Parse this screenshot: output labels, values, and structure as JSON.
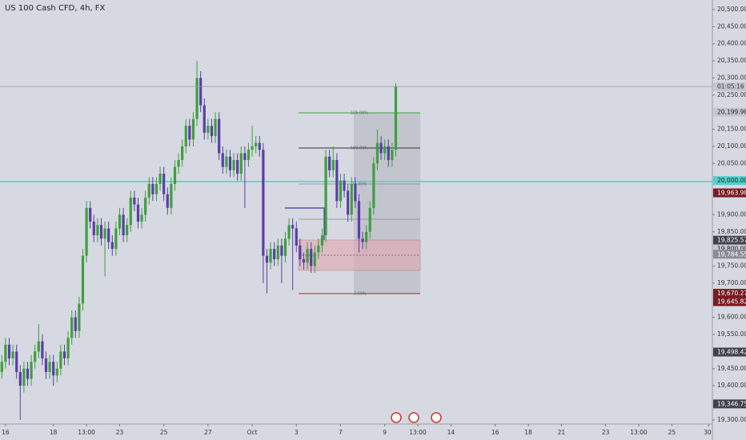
{
  "chart_data": {
    "type": "candlestick",
    "title": "US 100 Cash CFD, 4h, FX",
    "up_color": "#3f9e3f",
    "down_color": "#5a3ea6",
    "open": [
      19440,
      19470,
      19520,
      19480,
      19500,
      19440,
      19400,
      19450,
      19420,
      19470,
      19500,
      19530,
      19480,
      19440,
      19470,
      19430,
      19450,
      19500,
      19480,
      19540,
      19600,
      19560,
      19640,
      19780,
      19920,
      19880,
      19840,
      19870,
      19830,
      19860,
      19820,
      19800,
      19860,
      19900,
      19840,
      19870,
      19950,
      19930,
      19880,
      19900,
      19950,
      19990,
      19960,
      19990,
      20020,
      19960,
      19920,
      19990,
      20040,
      20060,
      20100,
      20160,
      20120,
      20180,
      20300,
      20220,
      20140,
      20160,
      20130,
      20180,
      20080,
      20040,
      20070,
      20030,
      20060,
      20020,
      20080,
      20060,
      20090,
      20100,
      20110,
      20090,
      19780,
      19760,
      19800,
      19770,
      19810,
      19780,
      19830,
      19870,
      19860,
      19810,
      19770,
      19760,
      19800,
      19750,
      19790,
      19810,
      19840,
      20070,
      20030,
      20060,
      19940,
      20000,
      19970,
      19900,
      19990,
      19940,
      19830,
      19820,
      19850,
      19920,
      20050,
      20110,
      20080,
      20100,
      20060,
      20090
    ],
    "high": [
      19490,
      19540,
      19540,
      19520,
      19520,
      19460,
      19470,
      19470,
      19490,
      19520,
      19580,
      19550,
      19500,
      19490,
      19490,
      19470,
      19520,
      19520,
      19560,
      19620,
      19620,
      19660,
      19800,
      19940,
      19940,
      19900,
      19890,
      19890,
      19880,
      19880,
      19840,
      19880,
      19920,
      19920,
      19890,
      19970,
      19970,
      19950,
      19920,
      19970,
      20010,
      20010,
      20010,
      20040,
      20040,
      19980,
      20010,
      20060,
      20080,
      20120,
      20180,
      20180,
      20200,
      20350,
      20320,
      20240,
      20180,
      20180,
      20200,
      20200,
      20100,
      20090,
      20090,
      20080,
      20080,
      20100,
      20100,
      20110,
      20160,
      20130,
      20130,
      20110,
      19800,
      19820,
      19820,
      19830,
      19830,
      19850,
      19890,
      19890,
      19880,
      19830,
      19790,
      19820,
      19820,
      19810,
      19830,
      19860,
      20090,
      20090,
      20100,
      20080,
      20020,
      20020,
      19990,
      20010,
      20010,
      19960,
      19850,
      19870,
      19940,
      20070,
      20150,
      20130,
      20120,
      20120,
      20110,
      20285
    ],
    "low": [
      19420,
      19450,
      19460,
      19460,
      19420,
      19300,
      19380,
      19400,
      19400,
      19450,
      19480,
      19460,
      19420,
      19420,
      19400,
      19410,
      19430,
      19460,
      19460,
      19520,
      19540,
      19540,
      19620,
      19760,
      19860,
      19820,
      19820,
      19810,
      19720,
      19800,
      19780,
      19780,
      19840,
      19820,
      19820,
      19850,
      19910,
      19860,
      19860,
      19880,
      19930,
      19940,
      19940,
      19970,
      19940,
      19900,
      19900,
      19970,
      20020,
      20040,
      20080,
      20100,
      20100,
      20160,
      20200,
      20120,
      20120,
      20110,
      20110,
      20060,
      20020,
      20020,
      20010,
      20010,
      20000,
      20000,
      19920,
      20040,
      20070,
      20080,
      20070,
      19700,
      19670,
      19740,
      19750,
      19750,
      19700,
      19760,
      19810,
      19680,
      19790,
      19750,
      19740,
      19740,
      19730,
      19730,
      19770,
      19790,
      19820,
      20010,
      20010,
      19920,
      19920,
      19950,
      19880,
      19880,
      19920,
      19790,
      19800,
      19800,
      19830,
      19900,
      20030,
      20060,
      20060,
      20040,
      20040,
      20070
    ],
    "close": [
      19470,
      19520,
      19480,
      19500,
      19440,
      19400,
      19450,
      19420,
      19470,
      19500,
      19530,
      19480,
      19440,
      19470,
      19430,
      19450,
      19500,
      19480,
      19540,
      19600,
      19560,
      19640,
      19780,
      19920,
      19880,
      19840,
      19870,
      19830,
      19860,
      19820,
      19800,
      19860,
      19900,
      19840,
      19870,
      19950,
      19930,
      19880,
      19900,
      19950,
      19990,
      19960,
      19990,
      20020,
      19960,
      19920,
      19990,
      20040,
      20060,
      20100,
      20160,
      20120,
      20180,
      20300,
      20220,
      20140,
      20160,
      20130,
      20180,
      20080,
      20040,
      20070,
      20030,
      20060,
      20020,
      20080,
      20060,
      20090,
      20100,
      20110,
      20090,
      19780,
      19760,
      19800,
      19770,
      19810,
      19780,
      19830,
      19870,
      19860,
      19810,
      19770,
      19760,
      19800,
      19750,
      19790,
      19810,
      19840,
      20070,
      20030,
      20060,
      19940,
      20000,
      19970,
      19900,
      19990,
      19940,
      19830,
      19820,
      19850,
      19920,
      20050,
      20110,
      20080,
      20100,
      20060,
      20090,
      20275
    ],
    "xlim": [
      -0.5,
      193
    ],
    "xticks": [
      {
        "value": 1,
        "label": "16"
      },
      {
        "value": 14,
        "label": "18"
      },
      {
        "value": 23,
        "label": "13:00"
      },
      {
        "value": 32,
        "label": "23"
      },
      {
        "value": 44,
        "label": "25"
      },
      {
        "value": 56,
        "label": "27"
      },
      {
        "value": 68,
        "label": "Oct"
      },
      {
        "value": 80,
        "label": "3"
      },
      {
        "value": 92,
        "label": "7"
      },
      {
        "value": 104,
        "label": "9"
      },
      {
        "value": 113,
        "label": "13:00"
      },
      {
        "value": 122,
        "label": "14"
      },
      {
        "value": 134,
        "label": "16"
      },
      {
        "value": 143,
        "label": "18"
      },
      {
        "value": 152,
        "label": "21"
      },
      {
        "value": 164,
        "label": "23"
      },
      {
        "value": 173,
        "label": "13:00"
      },
      {
        "value": 182,
        "label": "25"
      },
      {
        "value": 192,
        "label": "30"
      }
    ],
    "ylim": [
      19288,
      20528
    ],
    "yticks": [
      {
        "value": 20500,
        "label": "20,500.00"
      },
      {
        "value": 20450,
        "label": "20,450.00"
      },
      {
        "value": 20400,
        "label": "20,400.00"
      },
      {
        "value": 20350,
        "label": "20,350.00"
      },
      {
        "value": 20300,
        "label": "20,300.00"
      },
      {
        "value": 20250,
        "label": "20,250.00"
      },
      {
        "value": 20150,
        "label": "20,150.00"
      },
      {
        "value": 20100,
        "label": "20,100.00"
      },
      {
        "value": 20050,
        "label": "20,050.00"
      },
      {
        "value": 19900,
        "label": "19,900.00"
      },
      {
        "value": 19850,
        "label": "19,850.00"
      },
      {
        "value": 19750,
        "label": "19,750.00"
      },
      {
        "value": 19700,
        "label": "19,700.00"
      },
      {
        "value": 19600,
        "label": "19,600.00"
      },
      {
        "value": 19550,
        "label": "19,550.00"
      },
      {
        "value": 19450,
        "label": "19,450.00"
      },
      {
        "value": 19400,
        "label": "19,400.00"
      },
      {
        "value": 19300,
        "label": "19,300.00"
      }
    ],
    "price_labels": [
      {
        "value": 20199.98,
        "label": "20,199.98",
        "color": "#c4c7cf"
      },
      {
        "value": 20000,
        "label": "20,000.00",
        "color": "#4fd1cc"
      },
      {
        "value": 19963.98,
        "label": "19,963.98",
        "color": "#7a1a22"
      },
      {
        "value": 19825.57,
        "label": "19,825.57",
        "color": "#40434d"
      },
      {
        "value": 19800,
        "label": "19,800.00",
        "color": "#c4c7cf"
      },
      {
        "value": 19784.55,
        "label": "19,784.55",
        "color": "#8a8d96"
      },
      {
        "value": 19670.27,
        "label": "19,670.27",
        "color": "#7a1a22"
      },
      {
        "value": 19645.82,
        "label": "19,645.82",
        "color": "#7a1a22"
      },
      {
        "value": 19498.42,
        "label": "19,498.42",
        "color": "#40434d"
      },
      {
        "value": 19346.75,
        "label": "19,346.75",
        "color": "#40434d"
      }
    ],
    "countdown": "01:05:16",
    "fib_labels": [
      "125.00%",
      "100.00%",
      "75.00%",
      "-2.50%"
    ]
  }
}
